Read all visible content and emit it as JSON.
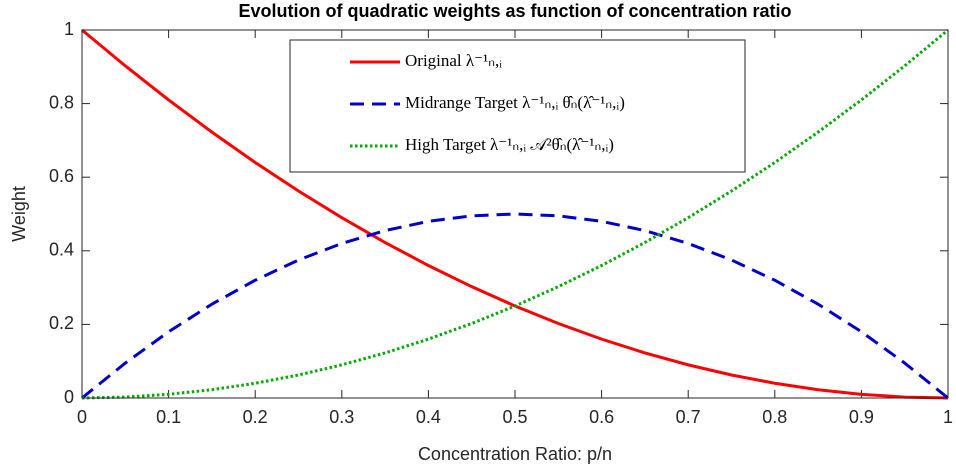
{
  "chart_data": {
    "type": "line",
    "title": "Evolution of quadratic weights as function of concentration ratio",
    "x_label": "Concentration Ratio: p/n",
    "y_label": "Weight",
    "x": [
      0,
      0.05,
      0.1,
      0.15,
      0.2,
      0.25,
      0.3,
      0.35,
      0.4,
      0.45,
      0.5,
      0.55,
      0.6,
      0.65,
      0.7,
      0.75,
      0.8,
      0.85,
      0.9,
      0.95,
      1
    ],
    "series": [
      {
        "name": "Original λ⁻¹ₙ,ᵢ",
        "color": "#ff0000",
        "dash": "solid",
        "values": [
          1,
          0.9025,
          0.81,
          0.7225,
          0.64,
          0.5625,
          0.49,
          0.4225,
          0.36,
          0.3025,
          0.25,
          0.2025,
          0.16,
          0.1225,
          0.09,
          0.0625,
          0.04,
          0.0225,
          0.01,
          0.0025,
          0
        ]
      },
      {
        "name": "Midrange Target λ⁻¹ₙ,ᵢ θ̂ₙ(λ̂⁻¹ₙ,ᵢ)",
        "color": "#0000cc",
        "dash": "dashed",
        "values": [
          0,
          0.095,
          0.18,
          0.255,
          0.32,
          0.375,
          0.42,
          0.455,
          0.48,
          0.495,
          0.5,
          0.495,
          0.48,
          0.455,
          0.42,
          0.375,
          0.32,
          0.255,
          0.18,
          0.095,
          0
        ]
      },
      {
        "name": "High Target λ⁻¹ₙ,ᵢ 𝒜²θ̂ₙ(λ̂⁻¹ₙ,ᵢ)",
        "color": "#00aa00",
        "dash": "dotted",
        "values": [
          0,
          0.0025,
          0.01,
          0.0225,
          0.04,
          0.0625,
          0.09,
          0.1225,
          0.16,
          0.2025,
          0.25,
          0.3025,
          0.36,
          0.4225,
          0.49,
          0.5625,
          0.64,
          0.7225,
          0.81,
          0.9025,
          1
        ]
      }
    ],
    "xlim": [
      0,
      1
    ],
    "ylim": [
      0,
      1
    ],
    "xticks": [
      0,
      0.1,
      0.2,
      0.3,
      0.4,
      0.5,
      0.6,
      0.7,
      0.8,
      0.9,
      1
    ],
    "yticks": [
      0,
      0.2,
      0.4,
      0.6,
      0.8,
      1
    ],
    "legend": "top"
  }
}
